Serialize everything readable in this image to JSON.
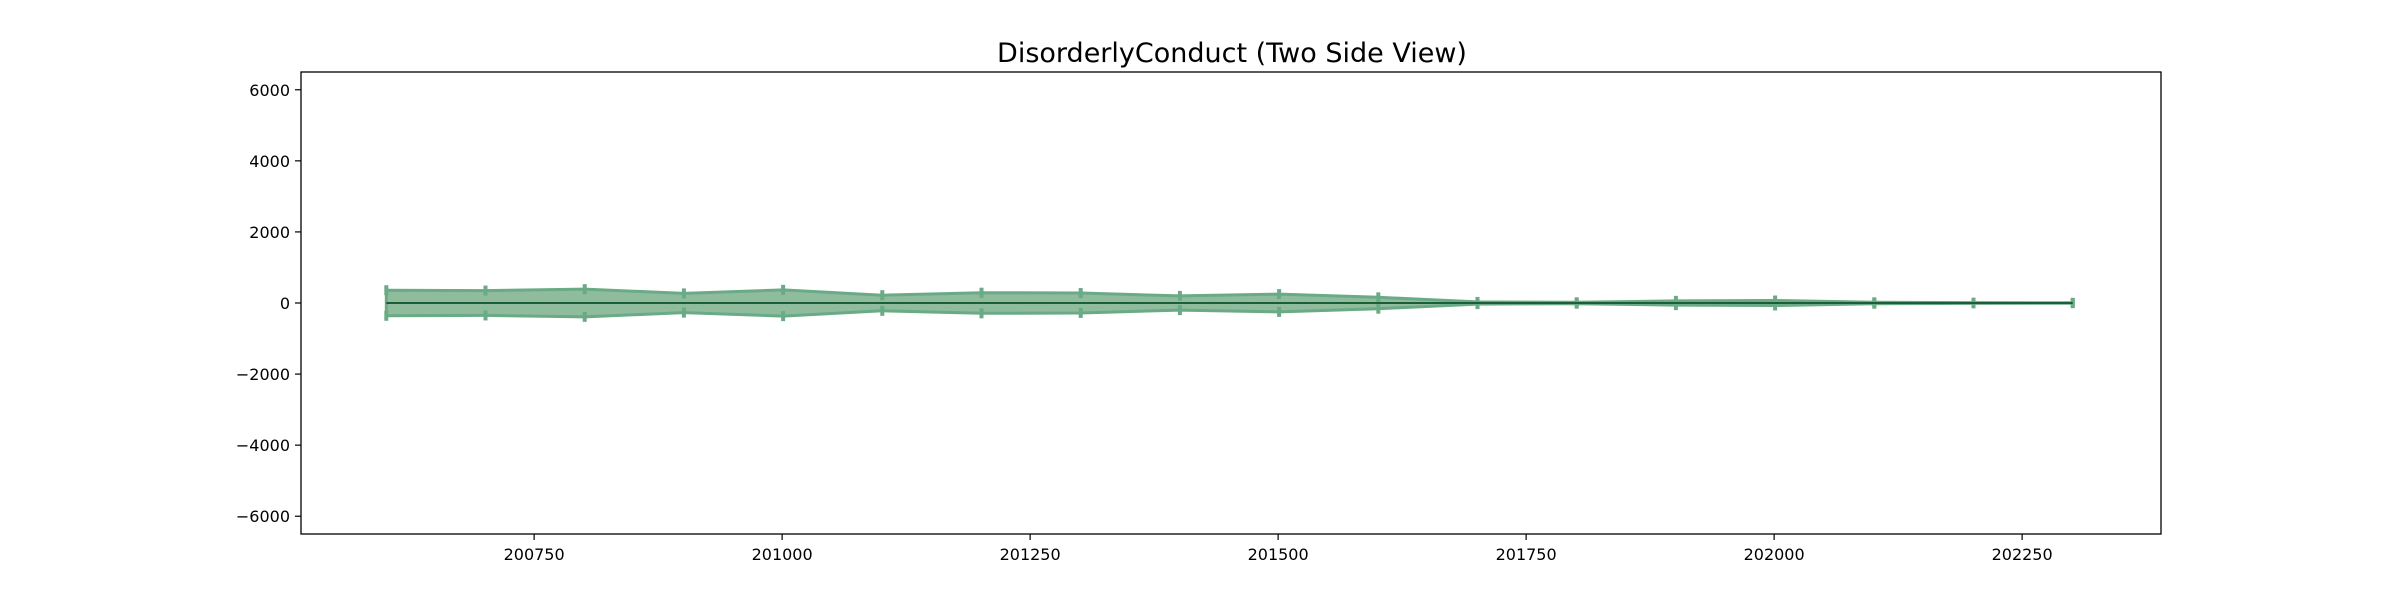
{
  "chart_data": {
    "type": "area",
    "title": "DisorderlyConduct (Two Side View)",
    "xlabel": "",
    "ylabel": "",
    "xlim": [
      200515,
      202390
    ],
    "ylim": [
      -6500,
      6500
    ],
    "xticks": [
      200750,
      201000,
      201250,
      201500,
      201750,
      202000,
      202250
    ],
    "yticks": [
      6000,
      4000,
      2000,
      0,
      -2000,
      -4000,
      -6000
    ],
    "xtick_labels": [
      "200750",
      "201000",
      "201250",
      "201500",
      "201750",
      "202000",
      "202250"
    ],
    "ytick_labels": [
      "6000",
      "4000",
      "2000",
      "0",
      "−2000",
      "−4000",
      "−6000"
    ],
    "grid": false,
    "legend": "none",
    "fill_color": "#8fbc9c",
    "edge_color": "#6aaa85",
    "baseline_color": "#1b5e38",
    "x": [
      200601,
      200701,
      200801,
      200901,
      201001,
      201101,
      201201,
      201301,
      201401,
      201501,
      201601,
      201701,
      201801,
      201901,
      202001,
      202101,
      202201,
      202301
    ],
    "values": [
      360,
      350,
      390,
      270,
      370,
      220,
      290,
      280,
      200,
      250,
      160,
      30,
      20,
      60,
      70,
      20,
      10,
      5
    ]
  }
}
